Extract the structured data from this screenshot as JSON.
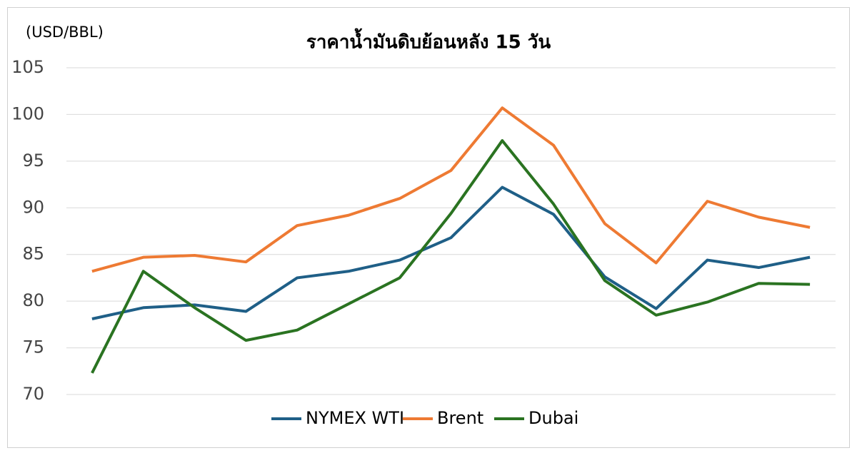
{
  "chart_data": {
    "type": "line",
    "title": "ราคาน้ำมันดิบย้อนหลัง 15 วัน",
    "y_label": "(USD/BBL)",
    "categories": [
      null,
      null,
      null,
      null,
      null,
      null,
      null,
      null,
      null,
      null,
      null,
      null,
      null,
      null,
      null
    ],
    "series": [
      {
        "name": "NYMEX WTI",
        "color": "#1f5f87",
        "values": [
          78.1,
          79.3,
          79.6,
          78.9,
          82.5,
          83.2,
          84.4,
          86.8,
          92.2,
          89.3,
          82.6,
          79.2,
          84.4,
          83.6,
          84.7
        ]
      },
      {
        "name": "Brent",
        "color": "#ee7a33",
        "values": [
          83.2,
          84.7,
          84.9,
          84.2,
          88.1,
          89.2,
          91.0,
          94.0,
          100.7,
          96.7,
          88.3,
          84.1,
          90.7,
          89.0,
          87.9
        ]
      },
      {
        "name": "Dubai",
        "color": "#2a7321",
        "values": [
          72.3,
          83.2,
          79.3,
          75.8,
          76.9,
          79.7,
          82.5,
          89.4,
          97.2,
          90.4,
          82.2,
          78.5,
          79.9,
          81.9,
          81.8
        ]
      }
    ],
    "ylim": [
      70,
      105
    ],
    "yticks": [
      70,
      75,
      80,
      85,
      90,
      95,
      100,
      105
    ],
    "grid": true,
    "legend": "bottom"
  }
}
